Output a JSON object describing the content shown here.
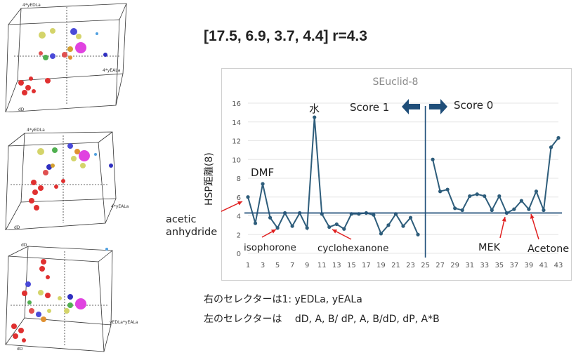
{
  "params_label": "[17.5, 6.9, 3.7, 4.4] r=4.3",
  "cubes": [
    {
      "axis_top": "4*yEDLa",
      "axis_right": "4*yEALa",
      "axis_bottom": "dD"
    },
    {
      "axis_top": "4*yEDLa",
      "axis_right": "4*yEALa",
      "axis_bottom": "dD"
    },
    {
      "axis_top": "dD",
      "axis_right": "yEDLa*yEALa",
      "axis_bottom": "dD"
    }
  ],
  "chart_data": {
    "type": "line",
    "title": "SEuclid-8",
    "ylabel": "HSP距離(8)",
    "xlabel": "",
    "ylim": [
      0,
      16
    ],
    "yticks": [
      0,
      2,
      4,
      6,
      8,
      10,
      12,
      14,
      16
    ],
    "xlim": [
      1,
      43
    ],
    "xticks": [
      1,
      3,
      5,
      7,
      9,
      11,
      13,
      15,
      17,
      19,
      21,
      23,
      25,
      27,
      29,
      31,
      33,
      35,
      37,
      39,
      41,
      43
    ],
    "threshold": 4.3,
    "divider_x": 25,
    "segments": [
      {
        "x": [
          1,
          2,
          3,
          4,
          5,
          6,
          7,
          8,
          9,
          10,
          11,
          12,
          13,
          14,
          15,
          16,
          17,
          18,
          19,
          20,
          21,
          22,
          23,
          24
        ],
        "y": [
          6.0,
          3.2,
          7.4,
          3.8,
          2.7,
          4.3,
          2.9,
          4.3,
          2.7,
          14.5,
          4.2,
          2.8,
          3.1,
          2.6,
          4.2,
          4.2,
          4.3,
          4.1,
          2.1,
          3.0,
          4.2,
          2.9,
          3.8,
          2.0
        ]
      },
      {
        "x": [
          26,
          27,
          28,
          29,
          30,
          31,
          32,
          33,
          34,
          35,
          36,
          37,
          38,
          39,
          40,
          41,
          42,
          43
        ],
        "y": [
          10.0,
          6.6,
          6.8,
          4.8,
          4.6,
          6.1,
          6.3,
          6.1,
          4.6,
          6.1,
          4.3,
          4.7,
          5.6,
          4.7,
          6.6,
          4.6,
          11.3,
          12.3
        ]
      }
    ],
    "annotations": {
      "water": "水",
      "dmf": "DMF",
      "acetic_anhydride": "acetic\nanhydride",
      "isophorone": "isophorone",
      "cyclohexanone": "cyclohexanone",
      "mek": "MEK",
      "acetone": "Acetone",
      "score1": "Score 1",
      "score0": "Score 0"
    }
  },
  "notes": {
    "line1": "右のセレクターは1: yEDLa, yEALa",
    "line2": "左のセレクターは　 dD, A, B/ dP, A, B/dD, dP, A*B"
  },
  "colors": {
    "line": "#2e5d7b",
    "threshold": "#1f4e79",
    "arrow": "#e02020",
    "score_arrow": "#1f4e79"
  }
}
